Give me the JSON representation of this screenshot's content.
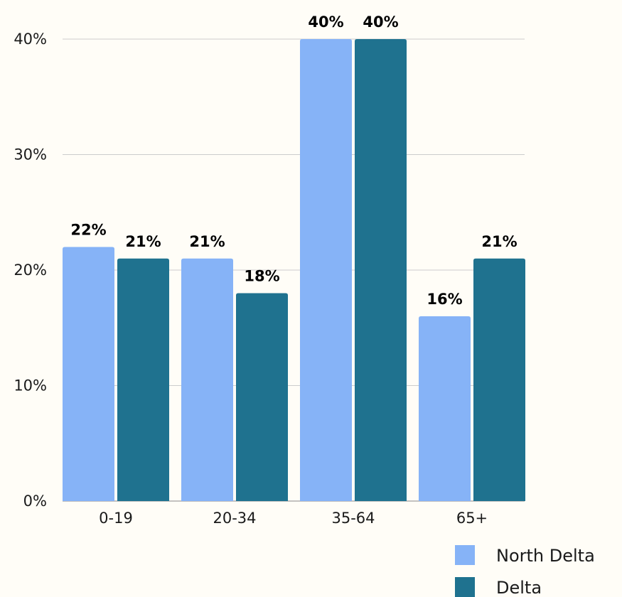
{
  "chart_data": {
    "type": "bar",
    "categories": [
      "0-19",
      "20-34",
      "35-64",
      "65+"
    ],
    "series": [
      {
        "name": "North Delta",
        "values": [
          22,
          21,
          40,
          16
        ],
        "labels": [
          "22%",
          "21%",
          "40%",
          "16%"
        ],
        "color": "#86b3f7"
      },
      {
        "name": "Delta",
        "values": [
          21,
          18,
          40,
          21
        ],
        "labels": [
          "21%",
          "18%",
          "40%",
          "21%"
        ],
        "color": "#1f728f"
      }
    ],
    "title": "",
    "xlabel": "",
    "ylabel": "",
    "ylim": [
      0,
      40
    ],
    "y_ticks": [
      {
        "value": 0,
        "label": "0%"
      },
      {
        "value": 10,
        "label": "10%"
      },
      {
        "value": 20,
        "label": "20%"
      },
      {
        "value": 30,
        "label": "30%"
      },
      {
        "value": 40,
        "label": "40%"
      }
    ],
    "grid": true,
    "gridline_color": "#cccccc",
    "legend_placement": "bottom-right",
    "background": "#fffdf7"
  }
}
